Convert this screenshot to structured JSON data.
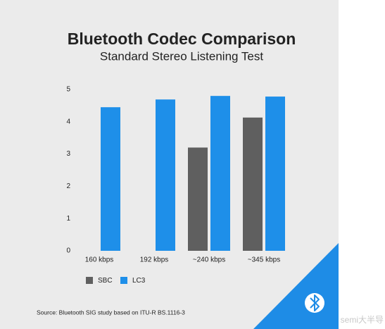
{
  "chart_data": {
    "type": "bar",
    "title": "Bluetooth Codec Comparison",
    "subtitle": "Standard Stereo Listening Test",
    "categories": [
      "160 kbps",
      "192 kbps",
      "~240 kbps",
      "~345 kbps"
    ],
    "series": [
      {
        "name": "SBC",
        "color": "#5f5f5f",
        "values": [
          null,
          null,
          3.2,
          4.13
        ]
      },
      {
        "name": "LC3",
        "color": "#1e8fe9",
        "values": [
          4.45,
          4.69,
          4.8,
          4.78
        ]
      }
    ],
    "ylim": [
      0,
      5
    ],
    "yticks": [
      0,
      1,
      2,
      3,
      4,
      5
    ],
    "grid": false,
    "source": "Source: Bluetooth SIG study based on ITU-R BS.1116-3"
  },
  "watermark": "semi大半导"
}
